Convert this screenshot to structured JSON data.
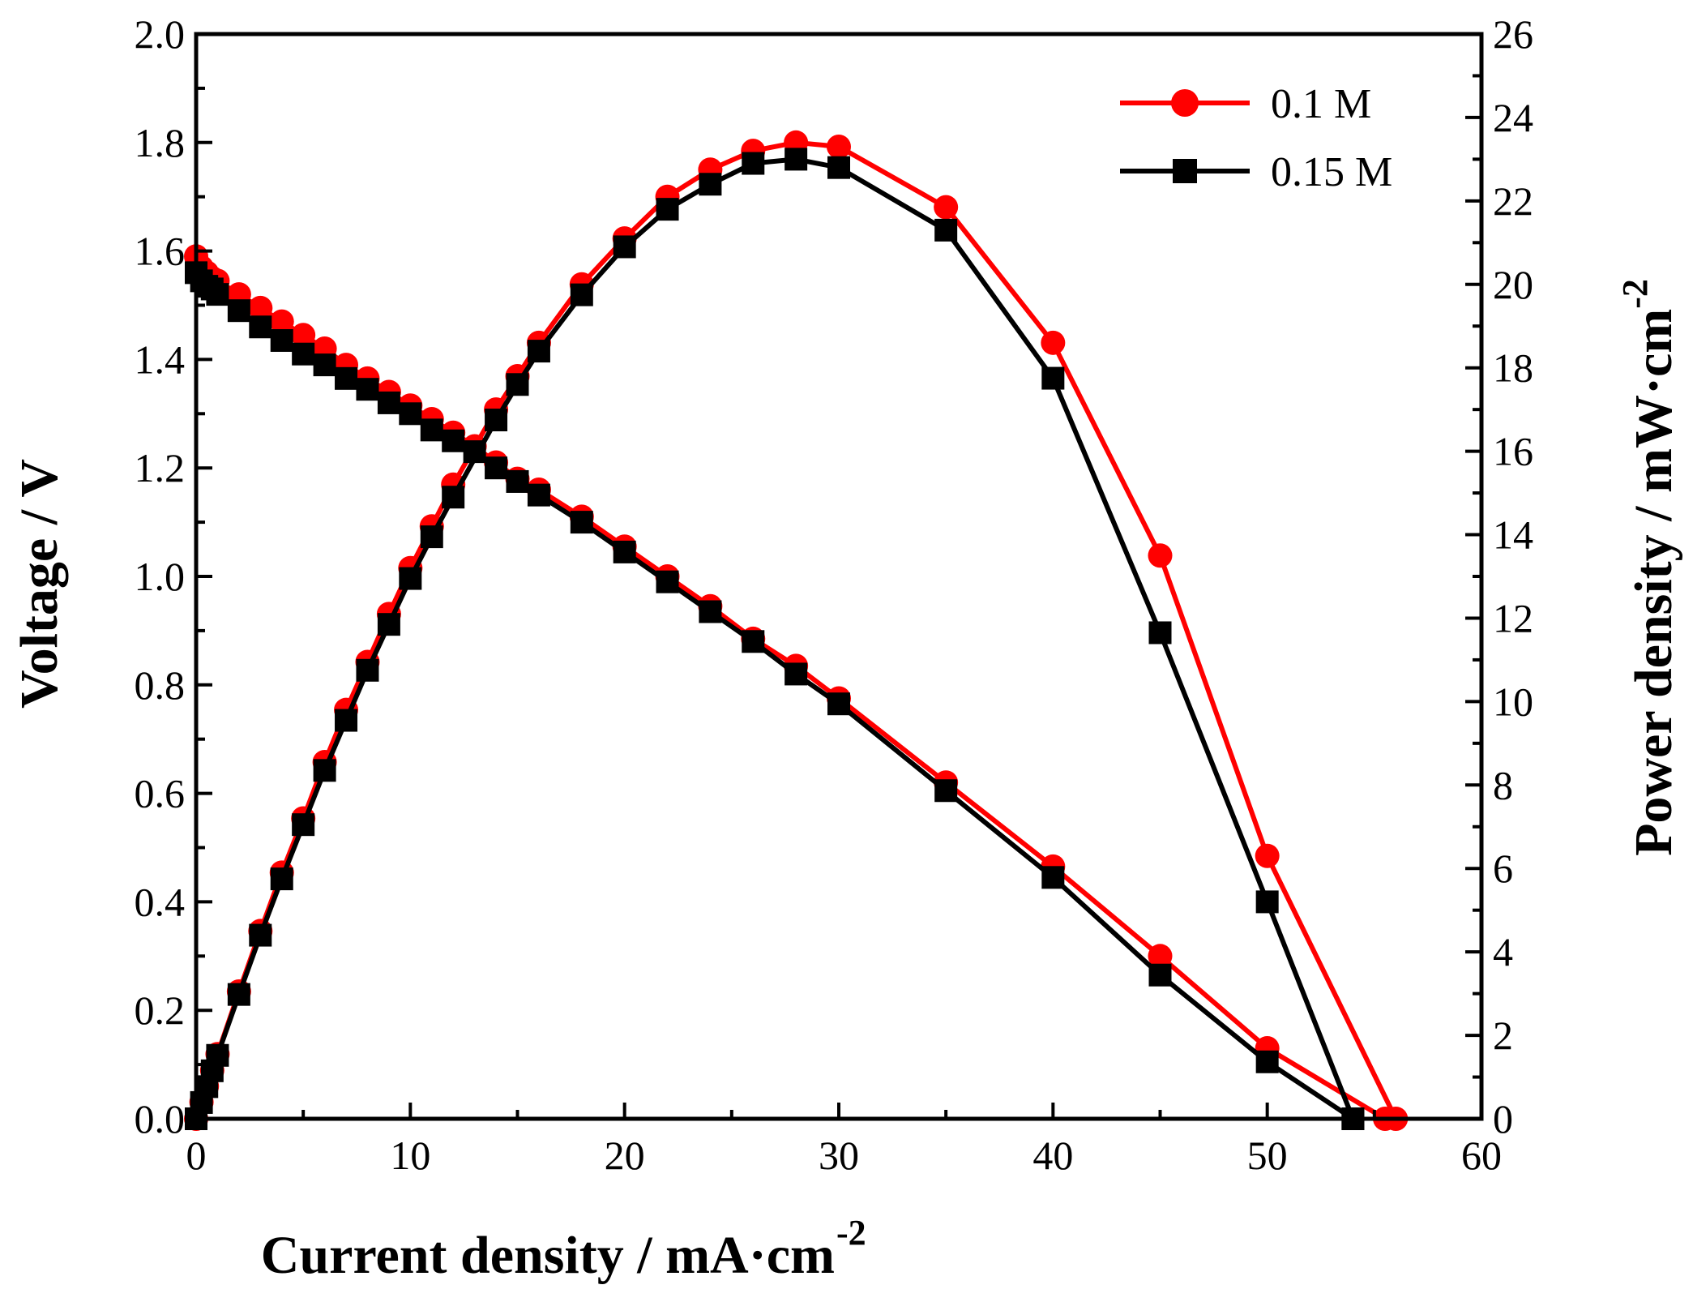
{
  "chart_data": {
    "type": "line",
    "xlabel": "Current density / mA·cm",
    "xlabel_superscript": "-2",
    "ylabel_left": "Voltage / V",
    "ylabel_right": "Power density / mW·cm",
    "ylabel_right_superscript": "-2",
    "xlim": [
      0,
      60
    ],
    "ylim_left": [
      0,
      2.0
    ],
    "ylim_right": [
      0,
      26
    ],
    "x_ticks": [
      "0",
      "10",
      "20",
      "30",
      "40",
      "50",
      "60"
    ],
    "y_left_ticks": [
      "0.0",
      "0.2",
      "0.4",
      "0.6",
      "0.8",
      "1.0",
      "1.2",
      "1.4",
      "1.6",
      "1.8",
      "2.0"
    ],
    "y_right_ticks": [
      "0",
      "2",
      "4",
      "6",
      "8",
      "10",
      "12",
      "14",
      "16",
      "18",
      "20",
      "22",
      "24",
      "26"
    ],
    "legend_position": "top-right",
    "series": [
      {
        "name": "0.1 M",
        "color": "#ff0000",
        "marker": "circle",
        "voltage_curve": {
          "x": [
            0,
            0.25,
            0.5,
            0.75,
            1,
            2,
            3,
            4,
            5,
            6,
            7,
            8,
            9,
            10,
            11,
            12,
            13,
            14,
            15,
            16,
            18,
            20,
            22,
            24,
            26,
            28,
            30,
            35,
            40,
            45,
            50,
            55.5
          ],
          "y": [
            1.59,
            1.57,
            1.56,
            1.55,
            1.545,
            1.52,
            1.495,
            1.47,
            1.445,
            1.42,
            1.39,
            1.365,
            1.34,
            1.315,
            1.29,
            1.265,
            1.24,
            1.21,
            1.18,
            1.16,
            1.11,
            1.055,
            1.0,
            0.945,
            0.885,
            0.835,
            0.775,
            0.62,
            0.465,
            0.3,
            0.13,
            0.0
          ]
        },
        "power_curve": {
          "x": [
            0,
            0.25,
            0.5,
            0.75,
            1,
            2,
            3,
            4,
            5,
            6,
            7,
            8,
            9,
            10,
            11,
            12,
            14,
            15,
            16,
            18,
            20,
            22,
            24,
            26,
            28,
            30,
            35,
            40,
            45,
            50,
            56
          ],
          "y": [
            0,
            0.4,
            0.78,
            1.16,
            1.55,
            3.05,
            4.5,
            5.9,
            7.2,
            8.55,
            9.8,
            10.95,
            12.1,
            13.2,
            14.2,
            15.2,
            17.0,
            17.8,
            18.6,
            20.0,
            21.1,
            22.1,
            22.75,
            23.2,
            23.4,
            23.3,
            21.85,
            18.6,
            13.5,
            6.3,
            0.0
          ]
        }
      },
      {
        "name": "0.15 M",
        "color": "#000000",
        "marker": "square",
        "voltage_curve": {
          "x": [
            0,
            0.25,
            0.5,
            0.75,
            1,
            2,
            3,
            4,
            5,
            6,
            7,
            8,
            9,
            10,
            11,
            12,
            13,
            14,
            15,
            16,
            18,
            20,
            22,
            24,
            26,
            28,
            30,
            35,
            40,
            45,
            50,
            54
          ],
          "y": [
            1.56,
            1.545,
            1.535,
            1.53,
            1.52,
            1.49,
            1.46,
            1.435,
            1.41,
            1.39,
            1.365,
            1.345,
            1.32,
            1.3,
            1.27,
            1.25,
            1.23,
            1.2,
            1.175,
            1.15,
            1.1,
            1.045,
            0.99,
            0.935,
            0.88,
            0.82,
            0.765,
            0.605,
            0.445,
            0.265,
            0.105,
            0.0
          ]
        },
        "power_curve": {
          "x": [
            0,
            0.25,
            0.5,
            0.75,
            1,
            2,
            3,
            4,
            5,
            6,
            7,
            8,
            9,
            10,
            11,
            12,
            14,
            15,
            16,
            18,
            20,
            22,
            24,
            26,
            28,
            30,
            35,
            40,
            45,
            50,
            54
          ],
          "y": [
            0,
            0.39,
            0.77,
            1.15,
            1.52,
            2.98,
            4.4,
            5.75,
            7.05,
            8.35,
            9.55,
            10.75,
            11.85,
            12.95,
            13.95,
            14.9,
            16.75,
            17.6,
            18.4,
            19.75,
            20.9,
            21.8,
            22.4,
            22.9,
            23.0,
            22.8,
            21.3,
            17.75,
            11.65,
            5.2,
            0.0
          ]
        }
      }
    ]
  }
}
